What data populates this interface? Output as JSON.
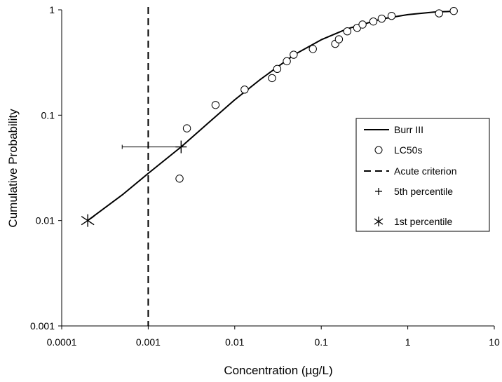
{
  "chart_data": {
    "type": "scatter",
    "xlabel": "Concentration (µg/L)",
    "ylabel": "Cumulative Probability",
    "x_scale": "log",
    "y_scale": "log",
    "xlim": [
      0.0001,
      10
    ],
    "ylim": [
      0.001,
      1
    ],
    "x_ticks": [
      "0.0001",
      "0.001",
      "0.01",
      "0.1",
      "1",
      "10"
    ],
    "y_ticks": [
      "0.001",
      "0.01",
      "0.1",
      "1"
    ],
    "grid": false,
    "legend_position": "right",
    "series": [
      {
        "name": "Burr III",
        "kind": "line",
        "style": "solid",
        "x": [
          0.0002,
          0.0005,
          0.001,
          0.0024,
          0.005,
          0.01,
          0.02,
          0.05,
          0.1,
          0.2,
          0.5,
          1,
          2,
          3.5
        ],
        "y": [
          0.01,
          0.0175,
          0.028,
          0.05,
          0.085,
          0.14,
          0.22,
          0.38,
          0.52,
          0.66,
          0.82,
          0.9,
          0.95,
          0.97
        ]
      },
      {
        "name": "LC50s",
        "kind": "scatter",
        "marker": "open-circle",
        "x": [
          0.0023,
          0.0028,
          0.006,
          0.013,
          0.027,
          0.031,
          0.04,
          0.048,
          0.08,
          0.145,
          0.16,
          0.2,
          0.26,
          0.3,
          0.4,
          0.5,
          0.65,
          2.3,
          3.4
        ],
        "y": [
          0.025,
          0.075,
          0.125,
          0.175,
          0.225,
          0.275,
          0.325,
          0.375,
          0.425,
          0.475,
          0.525,
          0.625,
          0.675,
          0.725,
          0.775,
          0.825,
          0.875,
          0.925,
          0.975
        ]
      },
      {
        "name": "Acute criterion",
        "kind": "vline",
        "style": "dashed",
        "x": [
          0.001
        ]
      },
      {
        "name": "5th percentile",
        "kind": "point",
        "marker": "plus",
        "x": [
          0.0024
        ],
        "y": [
          0.05
        ],
        "x_error": [
          0.0005,
          0.0024
        ]
      },
      {
        "name": "1st percentile",
        "kind": "point",
        "marker": "asterisk",
        "x": [
          0.0002
        ],
        "y": [
          0.01
        ]
      }
    ]
  }
}
